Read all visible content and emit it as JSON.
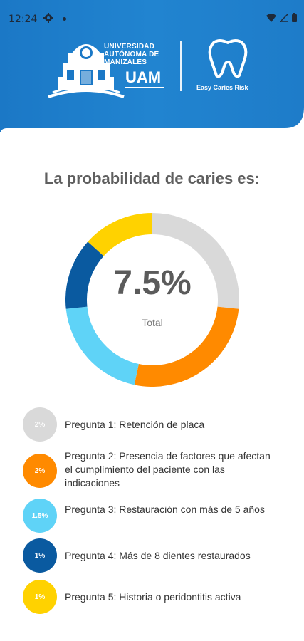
{
  "status_bar": {
    "time": "12:24",
    "icons": [
      "gear-icon",
      "notification-dot-icon",
      "wifi-icon",
      "signal-icon",
      "battery-icon"
    ]
  },
  "header": {
    "university_name_lines": [
      "UNIVERSIDAD",
      "AUTÓNOMA DE",
      "MANIZALES"
    ],
    "university_abbr": "UAM",
    "app_name": "Easy Caries Risk",
    "colors": {
      "header_blue": "#1b78c6"
    }
  },
  "result": {
    "title": "La probabilidad de caries es:",
    "total_value": "7.5%",
    "total_label": "Total"
  },
  "chart_data": {
    "type": "pie",
    "total": 7.5,
    "series": [
      {
        "name": "Pregunta 1: Retención de placa",
        "value": 2,
        "color": "#d9d9d9"
      },
      {
        "name": "Pregunta 2: Presencia de factores que afectan el cumplimiento del paciente con las indicaciones",
        "value": 2,
        "color": "#ff8a00"
      },
      {
        "name": "Pregunta 3: Restauración con más de 5 años",
        "value": 1.5,
        "color": "#5fd3f7"
      },
      {
        "name": "Pregunta 4: Más de 8 dientes restaurados",
        "value": 1,
        "color": "#0a5aa0"
      },
      {
        "name": "Pregunta 5: Historia o peridontitis activa",
        "value": 1,
        "color": "#ffd200"
      }
    ]
  },
  "legend": [
    {
      "badge": "2%",
      "text": "Pregunta 1: Retención de placa",
      "color": "#d9d9d9"
    },
    {
      "badge": "2%",
      "text": "Pregunta 2: Presencia de factores que afectan el cumplimiento del paciente con las indicaciones",
      "color": "#ff8a00"
    },
    {
      "badge": "1.5%",
      "text": "Pregunta 3: Restauración con más de 5 años",
      "color": "#5fd3f7"
    },
    {
      "badge": "1%",
      "text": "Pregunta 4: Más de 8 dientes restaurados",
      "color": "#0a5aa0"
    },
    {
      "badge": "1%",
      "text": "Pregunta 5: Historia o peridontitis activa",
      "color": "#ffd200"
    }
  ]
}
